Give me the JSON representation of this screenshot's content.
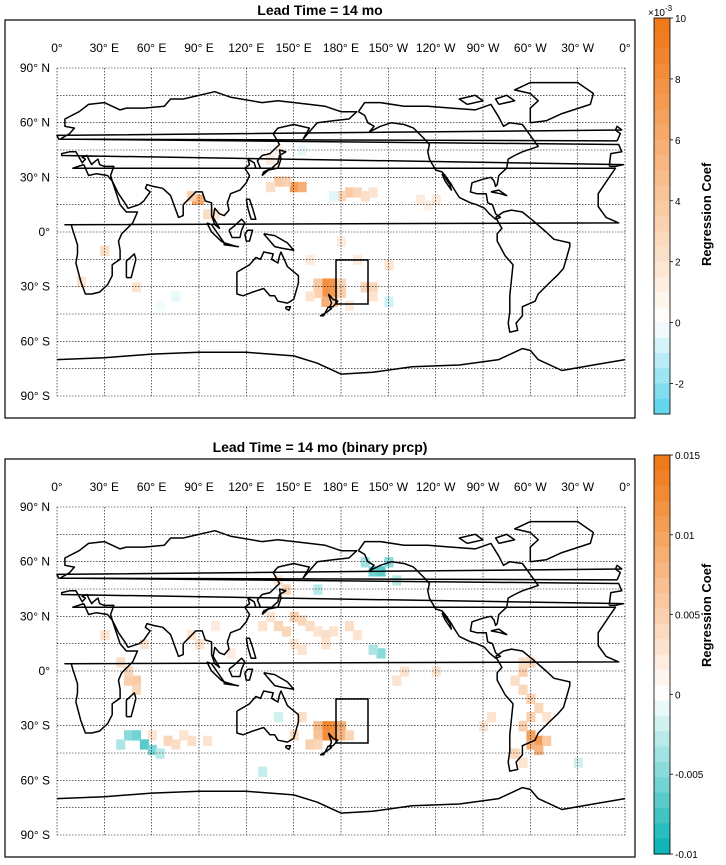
{
  "panels": [
    {
      "title": "Lead Time = 14 mo",
      "colorbar": {
        "label": "Regression Coef",
        "exponent": "×10",
        "exponent_power": "-3",
        "ticks": [
          "10",
          "8",
          "6",
          "4",
          "2",
          "0",
          "-2"
        ],
        "range": [
          -3,
          10
        ],
        "neg_color": "#5fd4ea",
        "pos_color": "#f07a1a"
      }
    },
    {
      "title": "Lead Time = 14 mo (binary prcp)",
      "colorbar": {
        "label": "Regression Coef",
        "ticks": [
          "0.015",
          "0.01",
          "0.005",
          "0",
          "-0.005",
          "-0.01"
        ],
        "range": [
          -0.01,
          0.015
        ],
        "neg_color": "#12b5b5",
        "pos_color": "#f07a1a"
      }
    }
  ],
  "lon_labels": [
    "0°",
    "30° E",
    "60° E",
    "90° E",
    "120° E",
    "150° E",
    "180° E",
    "150° W",
    "120° W",
    "90° W",
    "60° W",
    "30° W",
    "0°"
  ],
  "lat_labels": [
    "90° N",
    "60° N",
    "30° N",
    "0°",
    "30° S",
    "60° S",
    "90° S"
  ]
}
